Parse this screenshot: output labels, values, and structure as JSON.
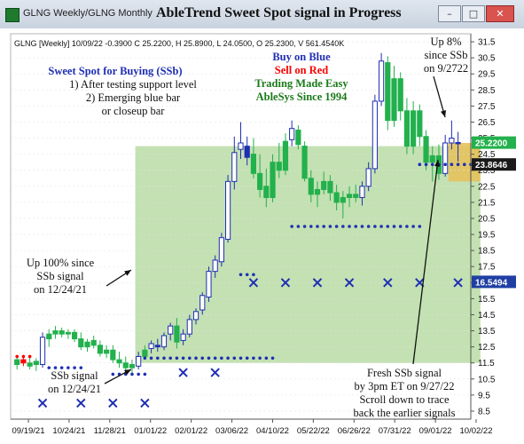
{
  "window": {
    "tab_title": "GLNG Weekly/GLNG Monthly",
    "title": "AbleTrend Sweet Spot signal in Progress",
    "minimize_glyph": "–",
    "maximize_glyph": "□",
    "close_glyph": "✕"
  },
  "chart_data": {
    "type": "candlestick",
    "header": "GLNG [Weekly] 10/09/22  -0.3900 C 25.2200, H 25.8900, L 24.0500, O 25.2300, V 561.4540K",
    "y_ticks": [
      "31.5",
      "30.5",
      "29.5",
      "28.5",
      "27.5",
      "26.5",
      "25.5",
      "24.5",
      "23.5",
      "22.5",
      "21.5",
      "20.5",
      "19.5",
      "18.5",
      "17.5",
      "16.5",
      "15.5",
      "14.5",
      "13.5",
      "12.5",
      "11.5",
      "10.5",
      "9.5",
      "8.5"
    ],
    "ylim": [
      8.0,
      32.0
    ],
    "x_labels": [
      "09/19/21",
      "10/24/21",
      "11/28/21",
      "01/01/22",
      "02/01/22",
      "03/06/22",
      "04/10/22",
      "05/22/22",
      "06/26/22",
      "07/31/22",
      "09/01/22",
      "10/02/22"
    ],
    "price_tags": [
      {
        "value": 25.22,
        "label": "25.2200",
        "color": "#22b14c"
      },
      {
        "value": 23.86,
        "label": "23.8646",
        "color": "#1a1a1a"
      },
      {
        "value": 16.55,
        "label": "16.5494",
        "color": "#1f3fa3"
      }
    ],
    "sweet_spot_zone": {
      "from_bar": 19,
      "to_bar": 72,
      "y_low": 11.5,
      "y_high": 25.0,
      "color": "#b9dca4"
    },
    "signal_zone": {
      "from_bar": 68,
      "to_bar": 72,
      "y_low": 22.8,
      "y_high": 25.2,
      "color": "#e6c25c"
    },
    "candles": [
      {
        "o": 11.4,
        "h": 11.9,
        "l": 11.1,
        "c": 11.7,
        "color": "green"
      },
      {
        "o": 11.7,
        "h": 12.0,
        "l": 11.3,
        "c": 11.5,
        "color": "red"
      },
      {
        "o": 11.5,
        "h": 11.9,
        "l": 11.1,
        "c": 11.3,
        "color": "green"
      },
      {
        "o": 11.4,
        "h": 11.8,
        "l": 11.0,
        "c": 11.6,
        "color": "green"
      },
      {
        "o": 11.4,
        "h": 13.4,
        "l": 11.2,
        "c": 13.1,
        "color": "blue"
      },
      {
        "o": 13.0,
        "h": 13.6,
        "l": 12.5,
        "c": 13.3,
        "color": "green"
      },
      {
        "o": 13.3,
        "h": 13.8,
        "l": 13.0,
        "c": 13.5,
        "color": "green"
      },
      {
        "o": 13.5,
        "h": 13.7,
        "l": 13.1,
        "c": 13.3,
        "color": "green"
      },
      {
        "o": 13.3,
        "h": 13.6,
        "l": 13.0,
        "c": 13.4,
        "color": "green"
      },
      {
        "o": 13.4,
        "h": 13.6,
        "l": 12.8,
        "c": 13.0,
        "color": "green"
      },
      {
        "o": 13.0,
        "h": 13.4,
        "l": 12.3,
        "c": 12.5,
        "color": "green"
      },
      {
        "o": 12.5,
        "h": 13.0,
        "l": 12.2,
        "c": 12.8,
        "color": "green"
      },
      {
        "o": 12.9,
        "h": 13.2,
        "l": 12.4,
        "c": 12.6,
        "color": "green"
      },
      {
        "o": 12.6,
        "h": 12.9,
        "l": 11.9,
        "c": 12.1,
        "color": "green"
      },
      {
        "o": 12.1,
        "h": 12.6,
        "l": 11.8,
        "c": 12.3,
        "color": "green"
      },
      {
        "o": 12.3,
        "h": 12.6,
        "l": 11.5,
        "c": 11.7,
        "color": "green"
      },
      {
        "o": 11.7,
        "h": 12.2,
        "l": 11.2,
        "c": 11.5,
        "color": "green"
      },
      {
        "o": 11.5,
        "h": 11.9,
        "l": 11.0,
        "c": 11.2,
        "color": "green"
      },
      {
        "o": 11.2,
        "h": 11.7,
        "l": 10.9,
        "c": 11.4,
        "color": "green"
      },
      {
        "o": 11.3,
        "h": 12.2,
        "l": 11.1,
        "c": 11.9,
        "color": "blue"
      },
      {
        "o": 11.9,
        "h": 12.6,
        "l": 11.7,
        "c": 12.3,
        "color": "green"
      },
      {
        "o": 12.4,
        "h": 12.9,
        "l": 12.1,
        "c": 12.7,
        "color": "blue"
      },
      {
        "o": 12.6,
        "h": 13.0,
        "l": 12.2,
        "c": 12.5,
        "color": "blue"
      },
      {
        "o": 12.5,
        "h": 13.4,
        "l": 12.3,
        "c": 13.2,
        "color": "blue"
      },
      {
        "o": 13.3,
        "h": 14.0,
        "l": 12.9,
        "c": 13.8,
        "color": "blue"
      },
      {
        "o": 13.8,
        "h": 14.3,
        "l": 12.4,
        "c": 12.8,
        "color": "green"
      },
      {
        "o": 12.9,
        "h": 13.6,
        "l": 12.6,
        "c": 13.3,
        "color": "blue"
      },
      {
        "o": 13.3,
        "h": 14.5,
        "l": 13.1,
        "c": 14.2,
        "color": "blue"
      },
      {
        "o": 14.2,
        "h": 14.9,
        "l": 13.9,
        "c": 14.7,
        "color": "blue"
      },
      {
        "o": 14.8,
        "h": 15.9,
        "l": 14.5,
        "c": 15.7,
        "color": "blue"
      },
      {
        "o": 15.6,
        "h": 17.5,
        "l": 15.3,
        "c": 17.2,
        "color": "blue"
      },
      {
        "o": 17.2,
        "h": 18.2,
        "l": 16.8,
        "c": 17.9,
        "color": "blue"
      },
      {
        "o": 17.8,
        "h": 19.6,
        "l": 17.5,
        "c": 19.3,
        "color": "blue"
      },
      {
        "o": 19.2,
        "h": 23.2,
        "l": 19.0,
        "c": 22.8,
        "color": "blue"
      },
      {
        "o": 22.8,
        "h": 25.6,
        "l": 22.3,
        "c": 24.6,
        "color": "blue"
      },
      {
        "o": 24.8,
        "h": 26.5,
        "l": 24.2,
        "c": 25.2,
        "color": "blue"
      },
      {
        "o": 25.0,
        "h": 25.6,
        "l": 23.8,
        "c": 24.3,
        "color": "blue"
      },
      {
        "o": 24.5,
        "h": 25.5,
        "l": 23.0,
        "c": 23.3,
        "color": "green"
      },
      {
        "o": 23.3,
        "h": 24.5,
        "l": 21.8,
        "c": 22.3,
        "color": "green"
      },
      {
        "o": 22.5,
        "h": 23.6,
        "l": 21.2,
        "c": 21.8,
        "color": "green"
      },
      {
        "o": 21.8,
        "h": 24.5,
        "l": 21.5,
        "c": 24.0,
        "color": "green"
      },
      {
        "o": 24.0,
        "h": 25.2,
        "l": 23.0,
        "c": 23.5,
        "color": "green"
      },
      {
        "o": 23.5,
        "h": 25.8,
        "l": 23.2,
        "c": 25.3,
        "color": "green"
      },
      {
        "o": 25.4,
        "h": 26.6,
        "l": 25.0,
        "c": 26.1,
        "color": "blue"
      },
      {
        "o": 26.0,
        "h": 26.3,
        "l": 24.8,
        "c": 25.1,
        "color": "green"
      },
      {
        "o": 25.0,
        "h": 25.3,
        "l": 22.8,
        "c": 23.0,
        "color": "green"
      },
      {
        "o": 23.0,
        "h": 23.5,
        "l": 21.5,
        "c": 22.0,
        "color": "green"
      },
      {
        "o": 22.0,
        "h": 22.8,
        "l": 21.2,
        "c": 22.3,
        "color": "green"
      },
      {
        "o": 22.3,
        "h": 23.4,
        "l": 22.0,
        "c": 22.8,
        "color": "green"
      },
      {
        "o": 22.8,
        "h": 23.2,
        "l": 21.6,
        "c": 22.1,
        "color": "green"
      },
      {
        "o": 22.1,
        "h": 22.6,
        "l": 21.0,
        "c": 21.5,
        "color": "green"
      },
      {
        "o": 21.5,
        "h": 22.2,
        "l": 20.5,
        "c": 21.8,
        "color": "green"
      },
      {
        "o": 21.8,
        "h": 22.5,
        "l": 21.2,
        "c": 22.0,
        "color": "green"
      },
      {
        "o": 22.0,
        "h": 22.6,
        "l": 21.5,
        "c": 21.8,
        "color": "green"
      },
      {
        "o": 21.8,
        "h": 22.8,
        "l": 21.3,
        "c": 22.5,
        "color": "blue"
      },
      {
        "o": 22.5,
        "h": 24.0,
        "l": 22.2,
        "c": 23.6,
        "color": "blue"
      },
      {
        "o": 23.6,
        "h": 28.2,
        "l": 23.3,
        "c": 27.8,
        "color": "blue"
      },
      {
        "o": 27.8,
        "h": 30.8,
        "l": 27.5,
        "c": 30.3,
        "color": "blue"
      },
      {
        "o": 30.2,
        "h": 30.6,
        "l": 26.0,
        "c": 26.6,
        "color": "green"
      },
      {
        "o": 26.6,
        "h": 30.0,
        "l": 26.2,
        "c": 29.2,
        "color": "green"
      },
      {
        "o": 29.2,
        "h": 29.6,
        "l": 26.6,
        "c": 27.2,
        "color": "green"
      },
      {
        "o": 27.2,
        "h": 28.0,
        "l": 24.5,
        "c": 25.0,
        "color": "green"
      },
      {
        "o": 25.0,
        "h": 27.8,
        "l": 24.5,
        "c": 27.2,
        "color": "green"
      },
      {
        "o": 27.2,
        "h": 27.6,
        "l": 25.0,
        "c": 25.6,
        "color": "green"
      },
      {
        "o": 25.6,
        "h": 26.0,
        "l": 23.5,
        "c": 24.0,
        "color": "green"
      },
      {
        "o": 24.0,
        "h": 25.0,
        "l": 22.8,
        "c": 24.4,
        "color": "green"
      },
      {
        "o": 24.4,
        "h": 25.1,
        "l": 22.9,
        "c": 23.3,
        "color": "green"
      },
      {
        "o": 23.3,
        "h": 25.7,
        "l": 23.1,
        "c": 25.2,
        "color": "blue"
      },
      {
        "o": 25.2,
        "h": 26.6,
        "l": 24.8,
        "c": 25.5,
        "color": "blue"
      },
      {
        "o": 25.23,
        "h": 25.89,
        "l": 24.05,
        "c": 25.22,
        "color": "blue"
      }
    ],
    "dots": [
      {
        "from_bar": 0,
        "to_bar": 2,
        "y": 11.9,
        "color": "#ff0000"
      },
      {
        "from_bar": 5,
        "to_bar": 10,
        "y": 11.2,
        "color": "#1f2fb3"
      },
      {
        "from_bar": 15,
        "to_bar": 20,
        "y": 10.8,
        "color": "#1f2fb3"
      },
      {
        "from_bar": 20,
        "to_bar": 40,
        "y": 11.8,
        "color": "#1f2fb3"
      },
      {
        "from_bar": 35,
        "to_bar": 37,
        "y": 17.0,
        "color": "#1f2fb3"
      },
      {
        "from_bar": 43,
        "to_bar": 63,
        "y": 20.0,
        "color": "#1f2fb3"
      },
      {
        "from_bar": 63,
        "to_bar": 71,
        "y": 23.86,
        "color": "#1f2fb3"
      }
    ],
    "x_marks": [
      {
        "bar": 4,
        "y": 9.0
      },
      {
        "bar": 10,
        "y": 9.0
      },
      {
        "bar": 15,
        "y": 9.0
      },
      {
        "bar": 20,
        "y": 9.0
      },
      {
        "bar": 26,
        "y": 10.9
      },
      {
        "bar": 31,
        "y": 10.9
      },
      {
        "bar": 37,
        "y": 16.5
      },
      {
        "bar": 42,
        "y": 16.5
      },
      {
        "bar": 47,
        "y": 16.5
      },
      {
        "bar": 52,
        "y": 16.5
      },
      {
        "bar": 58,
        "y": 16.5
      },
      {
        "bar": 63,
        "y": 16.5
      },
      {
        "bar": 69,
        "y": 16.5
      }
    ],
    "annotations": {
      "sweet_spot_title": "Sweet Spot for Buying (SSb)",
      "sweet_spot_line1": "1) After testing support level",
      "sweet_spot_line2": "2) Emerging blue bar",
      "sweet_spot_line3": "or closeup bar",
      "buy_on_blue": "Buy on Blue",
      "sell_on_red": "Sell on Red",
      "trading_made_easy": "Trading Made Easy",
      "ablesys_since": "AbleSys Since 1994",
      "up8_line1": "Up 8%",
      "up8_line2": "since SSb",
      "up8_line3": "on 9/2722",
      "up100_line1": "Up 100% since",
      "up100_line2": "SSb signal",
      "up100_line3": "on 12/24/21",
      "ssb_signal_line1": "SSb signal",
      "ssb_signal_line2": "on 12/24/21",
      "fresh_line1": "Fresh SSb signal",
      "fresh_line2": "by 3pm ET on 9/27/22",
      "fresh_line3": "Scroll down to trace",
      "fresh_line4": "back the earlier signals"
    },
    "colors": {
      "bull": "#1f2fb3",
      "neutral": "#22b14c",
      "bear": "#ff0000",
      "zone": "#b9dca4",
      "annotation_blue": "#1f2fb3",
      "annotation_red": "#ff0000",
      "annotation_green": "#1a7a1a"
    }
  }
}
